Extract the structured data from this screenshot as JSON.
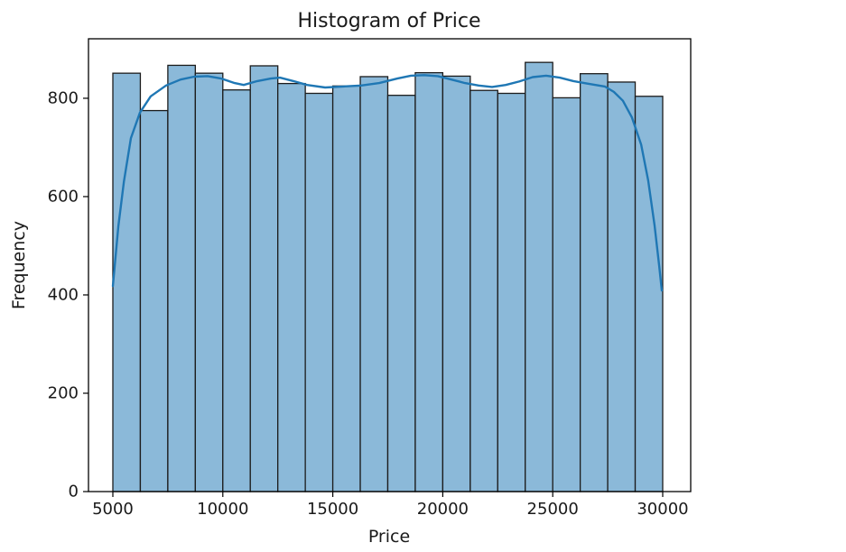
{
  "figure": {
    "background": "#ffffff",
    "frame_color": "#000000"
  },
  "chart_data": {
    "type": "histogram",
    "title": "Histogram of Price",
    "xlabel": "Price",
    "ylabel": "Frequency",
    "bin_start": 5000,
    "bin_width": 1250,
    "bin_count": 20,
    "frequencies": [
      851,
      775,
      867,
      851,
      817,
      866,
      830,
      810,
      825,
      844,
      806,
      852,
      845,
      816,
      810,
      873,
      801,
      850,
      833,
      804
    ],
    "x_ticks": [
      5000,
      10000,
      15000,
      20000,
      25000,
      30000
    ],
    "y_ticks": [
      0,
      200,
      400,
      600,
      800
    ],
    "xlim": [
      3892,
      31273
    ],
    "ylim": [
      0,
      921
    ],
    "grid": false,
    "legend": null,
    "bar_fill": "#8bb9d9",
    "bar_edge": "#1c1c1c",
    "kde_line": {
      "color": "#1f77b4",
      "points": [
        [
          5000,
          418
        ],
        [
          5250,
          540
        ],
        [
          5500,
          630
        ],
        [
          5820,
          719
        ],
        [
          6230,
          771
        ],
        [
          6720,
          804
        ],
        [
          7420,
          826
        ],
        [
          8080,
          838
        ],
        [
          8700,
          844
        ],
        [
          9310,
          845
        ],
        [
          9930,
          840
        ],
        [
          10540,
          831
        ],
        [
          10950,
          827
        ],
        [
          11570,
          835
        ],
        [
          12180,
          840
        ],
        [
          12600,
          842
        ],
        [
          13210,
          835
        ],
        [
          13830,
          827
        ],
        [
          14650,
          822
        ],
        [
          15470,
          824
        ],
        [
          16290,
          826
        ],
        [
          17110,
          831
        ],
        [
          17930,
          840
        ],
        [
          18550,
          846
        ],
        [
          19160,
          847
        ],
        [
          19780,
          845
        ],
        [
          20390,
          838
        ],
        [
          21010,
          831
        ],
        [
          21630,
          826
        ],
        [
          22240,
          823
        ],
        [
          22860,
          827
        ],
        [
          23470,
          834
        ],
        [
          24090,
          843
        ],
        [
          24700,
          846
        ],
        [
          25320,
          842
        ],
        [
          25940,
          835
        ],
        [
          26550,
          830
        ],
        [
          27370,
          824
        ],
        [
          27780,
          813
        ],
        [
          28190,
          795
        ],
        [
          28600,
          761
        ],
        [
          29020,
          706
        ],
        [
          29340,
          633
        ],
        [
          29630,
          541
        ],
        [
          29840,
          459
        ],
        [
          29960,
          409
        ]
      ]
    }
  }
}
